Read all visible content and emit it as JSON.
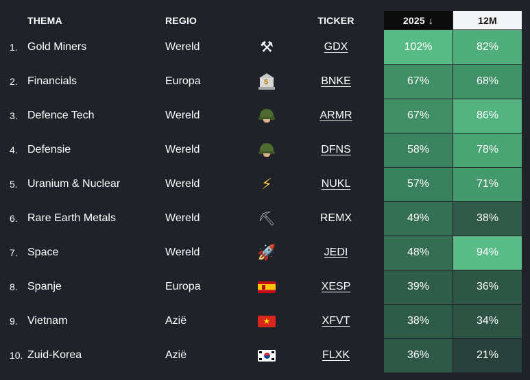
{
  "headers": {
    "thema": "THEMA",
    "regio": "REGIO",
    "ticker": "TICKER",
    "y2025": "2025",
    "sort_arrow": "↓",
    "m12": "12M"
  },
  "colors": {
    "background": "#1f2329",
    "sorted_header_bg": "#0b0b0b",
    "header_12m_bg": "#f3f4f6"
  },
  "rows": [
    {
      "num": "1.",
      "name": "Gold Miners",
      "region": "Wereld",
      "icon": "pick-and-hammer-icon",
      "ticker": "GDX",
      "link": true,
      "y2025": "102%",
      "m12": "82%",
      "c2025": "#57bb85",
      "c12m": "#4fae7b"
    },
    {
      "num": "2.",
      "name": "Financials",
      "region": "Europa",
      "icon": "bank-icon",
      "ticker": "BNKE",
      "link": true,
      "y2025": "67%",
      "m12": "68%",
      "c2025": "#3f8e66",
      "c12m": "#409068"
    },
    {
      "num": "3.",
      "name": "Defence Tech",
      "region": "Wereld",
      "icon": "military-helmet-icon",
      "ticker": "ARMR",
      "link": true,
      "y2025": "67%",
      "m12": "86%",
      "c2025": "#3f8e66",
      "c12m": "#52b37f"
    },
    {
      "num": "4.",
      "name": "Defensie",
      "region": "Wereld",
      "icon": "military-helmet-icon",
      "ticker": "DFNS",
      "link": true,
      "y2025": "58%",
      "m12": "78%",
      "c2025": "#3a8260",
      "c12m": "#4aa575"
    },
    {
      "num": "5.",
      "name": "Uranium & Nuclear",
      "region": "Wereld",
      "icon": "lightning-icon",
      "ticker": "NUKL",
      "link": true,
      "y2025": "57%",
      "m12": "71%",
      "c2025": "#39805e",
      "c12m": "#44996d"
    },
    {
      "num": "6.",
      "name": "Rare Earth Metals",
      "region": "Wereld",
      "icon": "pickaxe-icon",
      "ticker": "REMX",
      "link": false,
      "y2025": "49%",
      "m12": "38%",
      "c2025": "#356f53",
      "c12m": "#2f5a47"
    },
    {
      "num": "7.",
      "name": "Space",
      "region": "Wereld",
      "icon": "rocket-icon",
      "ticker": "JEDI",
      "link": true,
      "y2025": "48%",
      "m12": "94%",
      "c2025": "#346d52",
      "c12m": "#5abd88"
    },
    {
      "num": "8.",
      "name": "Spanje",
      "region": "Europa",
      "icon": "flag-spain-icon",
      "ticker": "XESP",
      "link": true,
      "y2025": "39%",
      "m12": "36%",
      "c2025": "#2f5d49",
      "c12m": "#2d5645"
    },
    {
      "num": "9.",
      "name": "Vietnam",
      "region": "Azië",
      "icon": "flag-vietnam-icon",
      "ticker": "XFVT",
      "link": true,
      "y2025": "38%",
      "m12": "34%",
      "c2025": "#2e5b48",
      "c12m": "#2c5343"
    },
    {
      "num": "10.",
      "name": "Zuid-Korea",
      "region": "Azië",
      "icon": "flag-south-korea-icon",
      "ticker": "FLXK",
      "link": true,
      "y2025": "36%",
      "m12": "21%",
      "c2025": "#2d5746",
      "c12m": "#283f3a"
    }
  ]
}
